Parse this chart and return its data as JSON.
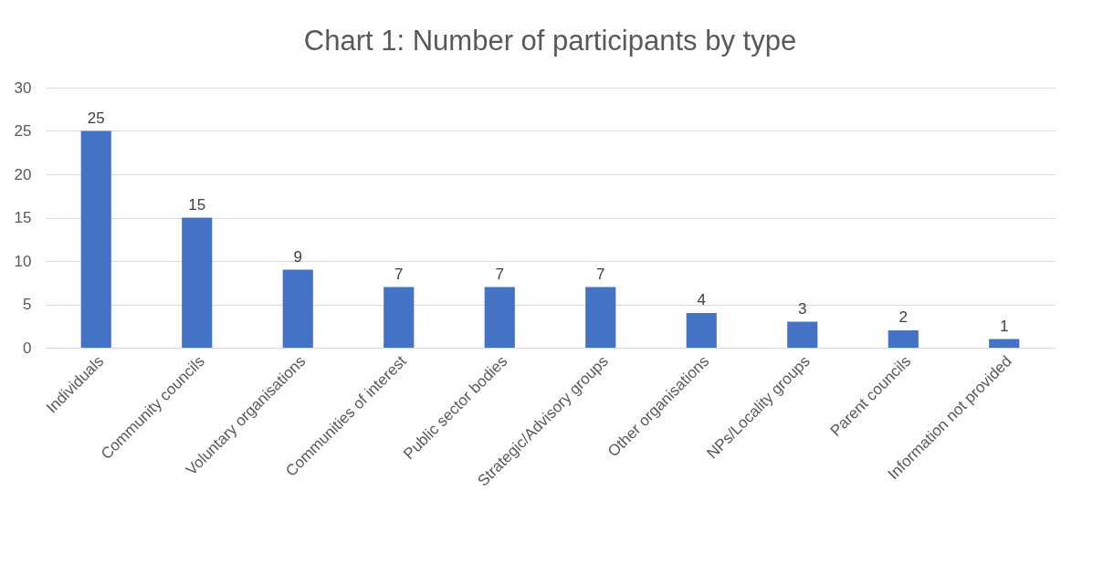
{
  "chart_data": {
    "type": "bar",
    "title": "Chart 1: Number of participants by type",
    "categories": [
      "Individuals",
      "Community councils",
      "Voluntary organisations",
      "Communities of interest",
      "Public sector bodies",
      "Strategic/Advisory groups",
      "Other organisations",
      "NPs/Locality groups",
      "Parent councils",
      "Information not provided"
    ],
    "values": [
      25,
      15,
      9,
      7,
      7,
      7,
      4,
      3,
      2,
      1
    ],
    "color": "#4472c4",
    "ylim": [
      0,
      30
    ],
    "yticks": [
      0,
      5,
      10,
      15,
      20,
      25,
      30
    ],
    "grid": "y",
    "data_labels": true
  }
}
